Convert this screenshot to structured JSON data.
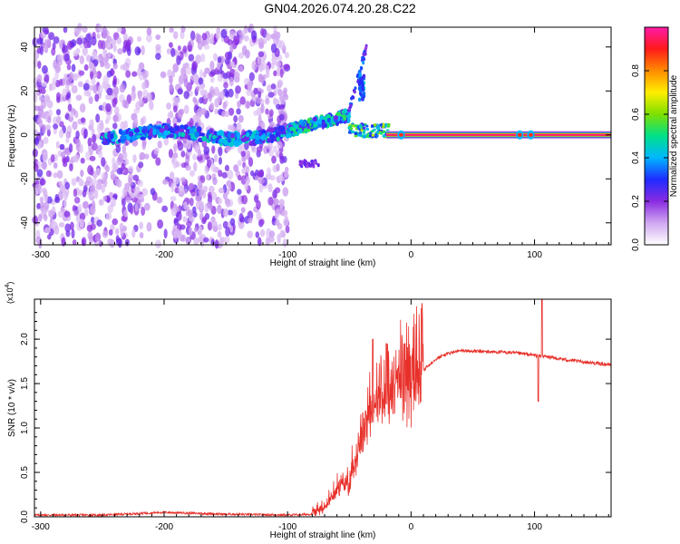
{
  "figure_title": "GN04.2026.074.20.28.C22",
  "chart_data": [
    {
      "type": "heatmap",
      "title": "",
      "xlabel": "Height of straight line (km)",
      "ylabel": "Frequency (Hz)",
      "xlim": [
        -305,
        162
      ],
      "ylim": [
        -50,
        49
      ],
      "x_ticks": [
        -300,
        -200,
        -100,
        0,
        100
      ],
      "y_ticks": [
        -40,
        -20,
        0,
        20,
        40
      ],
      "grid": false,
      "colorbar": {
        "label": "Normalized spectral amplitude",
        "range": [
          0.0,
          1.0
        ],
        "ticks": [
          0.0,
          0.2,
          0.4,
          0.6,
          0.8
        ],
        "colormap": [
          "#ffffff",
          "#d0a8f0",
          "#8a2be2",
          "#1e2bff",
          "#00b7ff",
          "#00e08a",
          "#7de000",
          "#ffee00",
          "#ff8c00",
          "#ff1a1a",
          "#ff1aa8"
        ]
      },
      "features": [
        {
          "x_range": [
            -305,
            -100
          ],
          "freq_range": [
            -50,
            49
          ],
          "amplitude": 0.15,
          "description_key": "noise"
        },
        {
          "x_range": [
            -250,
            -100
          ],
          "freq_center": 0,
          "amplitude": 0.45
        },
        {
          "x_range": [
            -100,
            -50
          ],
          "freq_center": 6,
          "amplitude": 0.55
        },
        {
          "x_range": [
            -42,
            -38
          ],
          "freq_center": 22,
          "amplitude": 0.4
        },
        {
          "x_range": [
            -20,
            162
          ],
          "freq_center": 0,
          "amplitude": 1.0
        }
      ]
    },
    {
      "type": "line",
      "title": "",
      "xlabel": "Height of straight line (km)",
      "ylabel": "SNR (10 * v/v)",
      "y_multiplier": "(x10",
      "y_multiplier_exp": "4",
      "xlim": [
        -305,
        162
      ],
      "ylim": [
        0,
        2.45
      ],
      "x_ticks": [
        -300,
        -200,
        -100,
        0,
        100
      ],
      "y_ticks": [
        0.0,
        0.5,
        1.0,
        1.5,
        2.0
      ],
      "y_tick_labels": [
        "0.0",
        "0.5",
        "1.0",
        "1.5",
        "2.0"
      ],
      "grid": false,
      "series": [
        {
          "color": "#e8302a",
          "envelope": {
            "x": [
              -305,
              -250,
              -200,
              -150,
              -100,
              -80,
              -70,
              -60,
              -50,
              -45,
              -40,
              -35,
              -30,
              -25,
              -20,
              -10,
              0,
              10,
              20,
              30,
              40,
              60,
              80,
              100,
              110,
              130,
              162
            ],
            "y": [
              0.02,
              0.02,
              0.05,
              0.03,
              0.02,
              0.03,
              0.1,
              0.25,
              0.4,
              0.6,
              0.9,
              1.1,
              1.2,
              1.3,
              1.35,
              1.45,
              1.55,
              1.65,
              1.78,
              1.84,
              1.87,
              1.86,
              1.85,
              1.82,
              1.8,
              1.76,
              1.71
            ]
          },
          "spikes": [
            {
              "x": -31,
              "y": 2.0
            },
            {
              "x": -20,
              "y": 1.95
            },
            {
              "x": -5,
              "y": 1.95
            },
            {
              "x": 106,
              "y": 2.45
            },
            {
              "x": 103,
              "y": 1.3
            }
          ]
        }
      ]
    }
  ]
}
